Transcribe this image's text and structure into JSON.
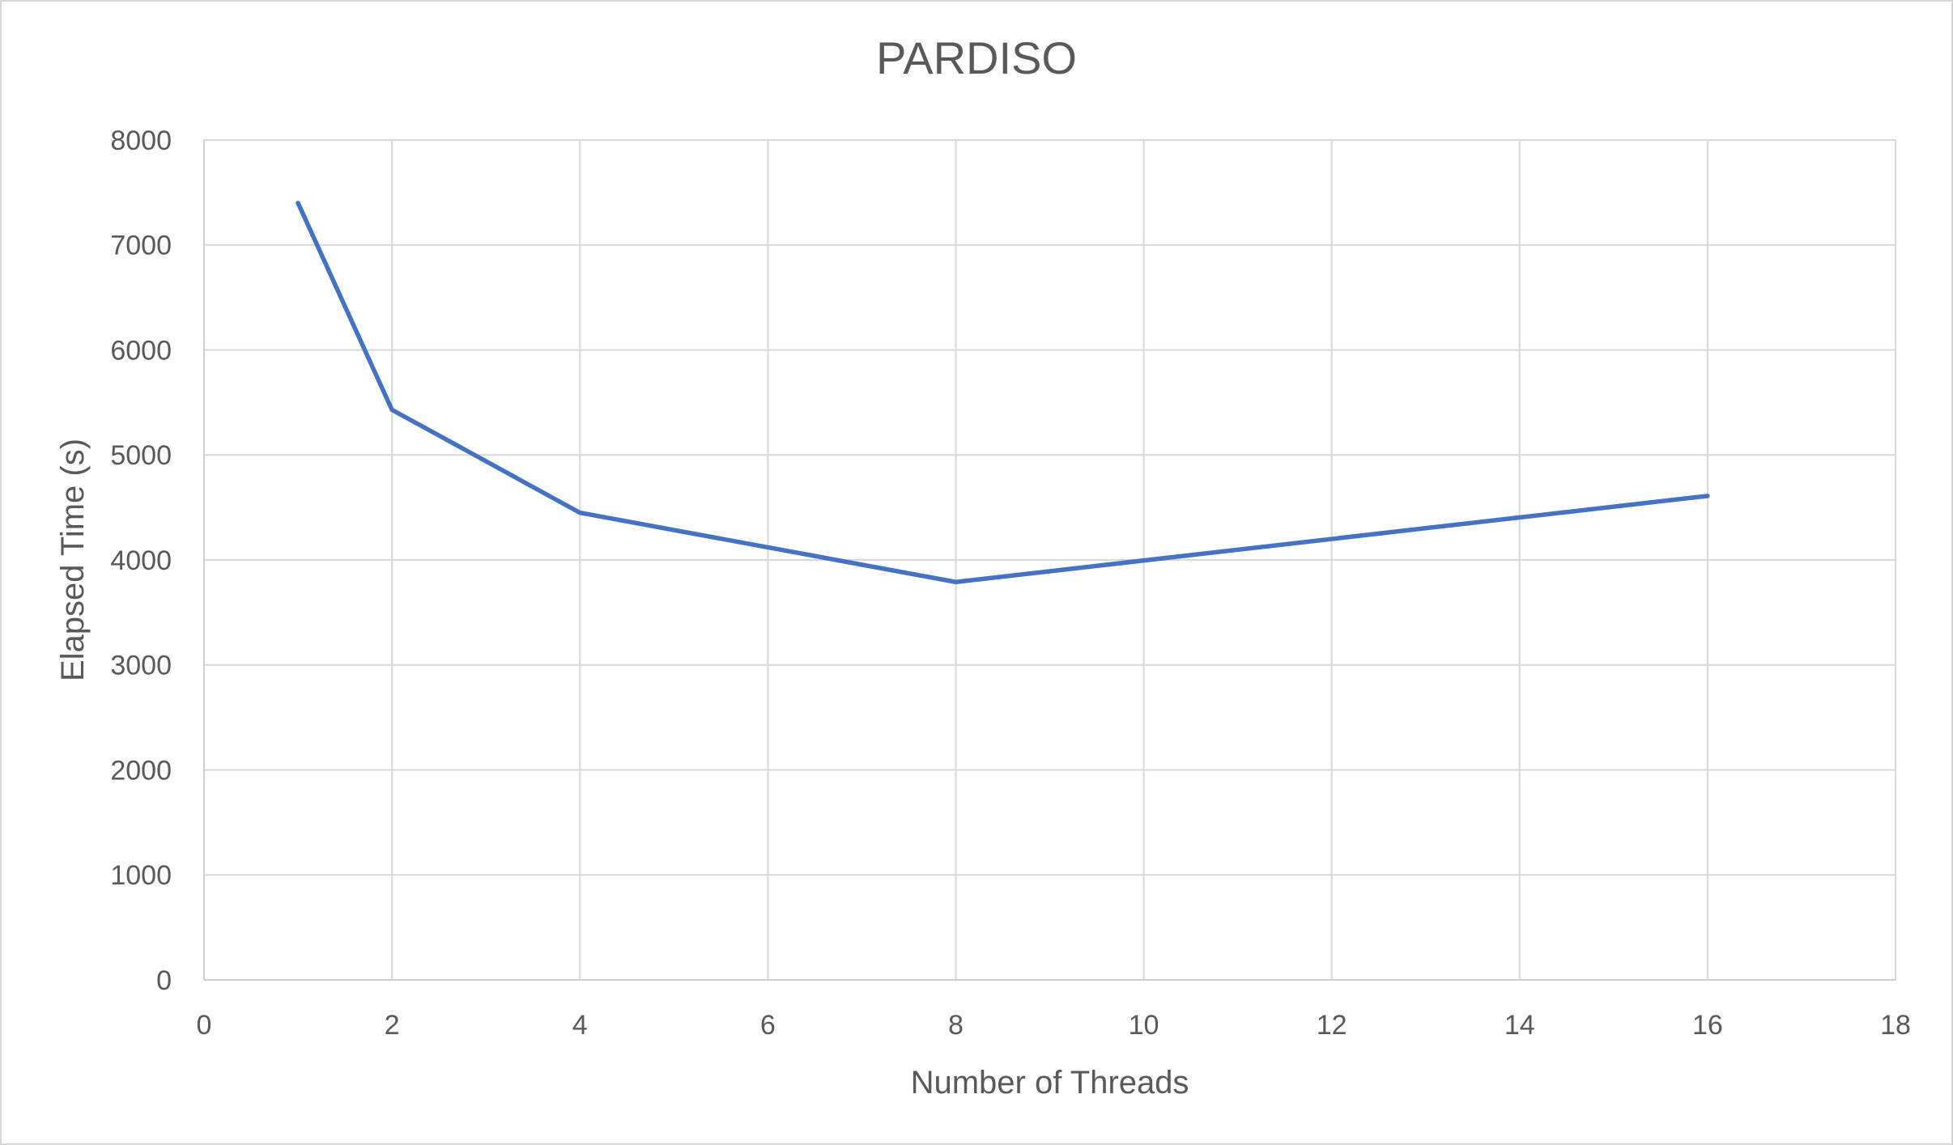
{
  "chart_data": {
    "type": "line",
    "title": "PARDISO",
    "xlabel": "Number of Threads",
    "ylabel": "Elapsed Time (s)",
    "x": [
      1,
      2,
      4,
      8,
      16
    ],
    "series": [
      {
        "color": "#4472C4",
        "values": [
          7400,
          5430,
          4450,
          3790,
          4610
        ]
      }
    ],
    "xlim": [
      0,
      18
    ],
    "ylim": [
      0,
      8000
    ],
    "x_ticks": [
      0,
      2,
      4,
      6,
      8,
      10,
      12,
      14,
      16,
      18
    ],
    "y_ticks": [
      0,
      1000,
      2000,
      3000,
      4000,
      5000,
      6000,
      7000,
      8000
    ],
    "grid": true,
    "legend_position": "none",
    "style": {
      "line_width": 5.5,
      "grid_color": "#d9d9d9",
      "axis_color": "#cfcfcf",
      "text_color": "#595959",
      "background": "#ffffff",
      "frame_border_color": "#d8d8d8"
    }
  }
}
